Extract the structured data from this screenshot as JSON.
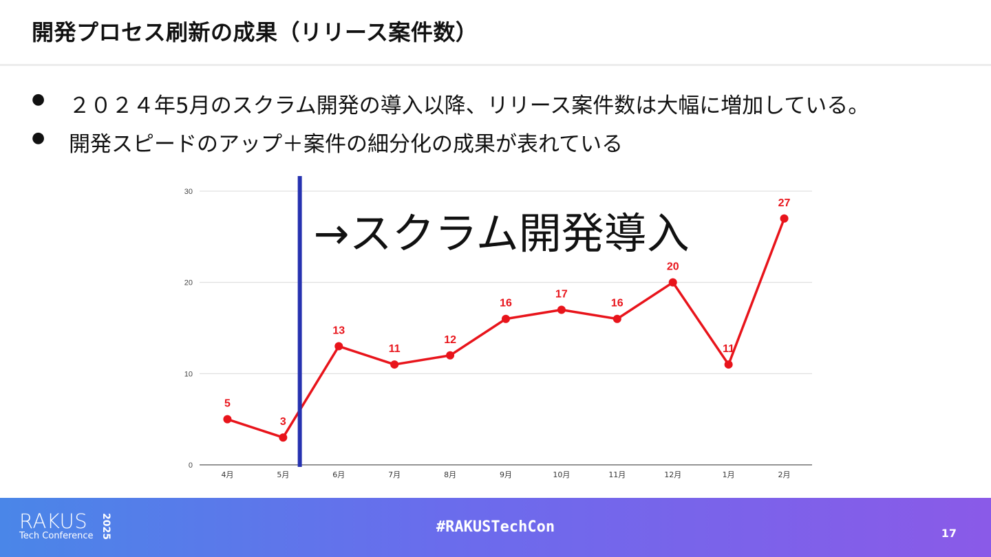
{
  "slide": {
    "title": "開発プロセス刷新の成果（リリース案件数）",
    "bullets": [
      {
        "marker": "●",
        "text": "２０２４年5月のスクラム開発の導入以降、リリース案件数は大幅に増加している。"
      },
      {
        "marker": "●",
        "text": "開発スピードのアップ＋案件の細分化の成果が表れている"
      }
    ],
    "footer": {
      "logo": "RAKUS",
      "logo_sub": "Tech Conference",
      "logo_year": "2025",
      "hashtag": "#RAKUSTechCon",
      "page_number": "17"
    }
  },
  "chart_data": {
    "type": "line",
    "categories": [
      "4月",
      "5月",
      "6月",
      "7月",
      "8月",
      "9月",
      "10月",
      "11月",
      "12月",
      "1月",
      "2月"
    ],
    "series": [
      {
        "values": [
          5,
          3,
          13,
          11,
          12,
          16,
          17,
          16,
          20,
          11,
          27
        ],
        "color": "#e8141b"
      }
    ],
    "ylim": [
      0,
      30
    ],
    "yticks": [
      0,
      10,
      20,
      30
    ],
    "grid": true,
    "marker_line_color": "#2632b0",
    "annotation": "→スクラム開発導入"
  }
}
